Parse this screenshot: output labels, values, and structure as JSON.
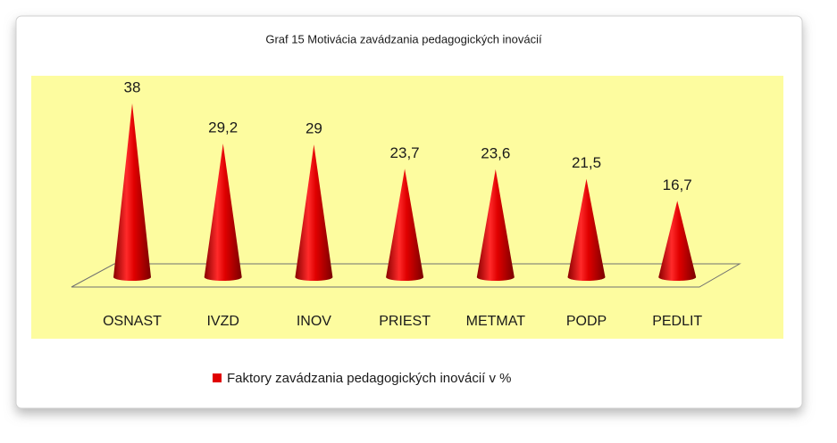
{
  "chart_data": {
    "type": "cone",
    "title": "Graf 15 Motivácia zavádzania pedagogických inovácií",
    "categories": [
      "OSNAST",
      "IVZD",
      "INOV",
      "PRIEST",
      "METMAT",
      "PODP",
      "PEDLIT"
    ],
    "series": [
      {
        "name": "Faktory zavádzania pedagogických inovácií v %",
        "color": "#e00000",
        "values": [
          38,
          29.2,
          29,
          23.7,
          23.6,
          21.5,
          16.7
        ],
        "value_labels": [
          "38",
          "29,2",
          "29",
          "23,7",
          "23,6",
          "21,5",
          "16,7"
        ]
      }
    ],
    "legend": "bottom"
  }
}
